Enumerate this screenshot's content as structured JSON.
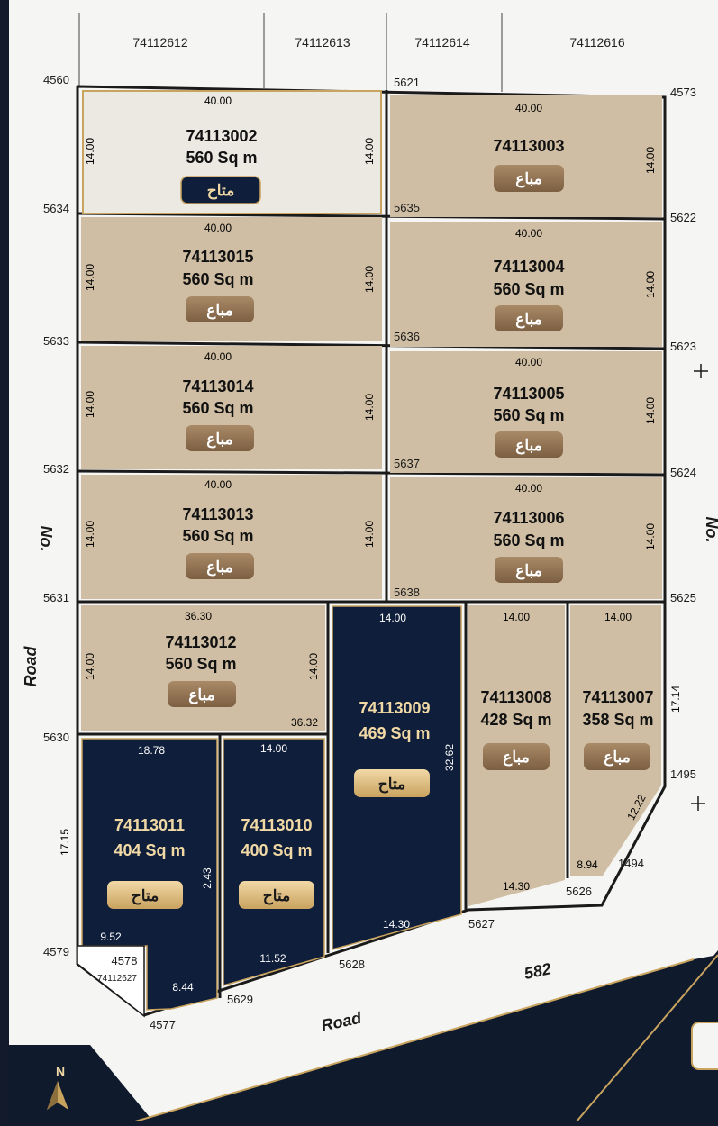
{
  "top_parcels": [
    "74112612",
    "74112613",
    "74112614",
    "74112616"
  ],
  "nodes": {
    "n4560": "4560",
    "n5621": "5621",
    "n4573": "4573",
    "n5634": "5634",
    "n5635": "5635",
    "n5622": "5622",
    "n5633": "5633",
    "n5636": "5636",
    "n5623": "5623",
    "n5632": "5632",
    "n5637": "5637",
    "n5624": "5624",
    "n5631": "5631",
    "n5638": "5638",
    "n5625": "5625",
    "n5630": "5630",
    "n1495": "1495",
    "n1494": "1494",
    "n5626": "5626",
    "n5627": "5627",
    "n5628": "5628",
    "n5629": "5629",
    "n4577": "4577",
    "n4578": "4578",
    "n4579": "4579"
  },
  "small_parcel": "74112627",
  "roads": {
    "left_no": "No.",
    "left_road": "Road",
    "right_no": "No.",
    "bottom_road": "Road",
    "bottom_582": "582"
  },
  "compass": "N",
  "status": {
    "available": "متاح",
    "sold": "مباع"
  },
  "colors": {
    "sold_fill": "#cfbea3",
    "available_fill": "#0f1e3a",
    "gold": "#c9a45f",
    "light_fill": "#ece9e2"
  },
  "plots": [
    {
      "id": "74113002",
      "area": "560 Sq m",
      "status": "متاح",
      "d_top": "40.00",
      "d_left": "14.00",
      "d_right": "14.00"
    },
    {
      "id": "74113003",
      "area": "",
      "status": "مباع",
      "d_top": "40.00",
      "d_right": "14.00"
    },
    {
      "id": "74113015",
      "area": "560 Sq m",
      "status": "مباع",
      "d_top": "40.00",
      "d_left": "14.00",
      "d_right": "14.00"
    },
    {
      "id": "74113004",
      "area": "560 Sq m",
      "status": "مباع",
      "d_top": "40.00",
      "d_right": "14.00"
    },
    {
      "id": "74113014",
      "area": "560 Sq m",
      "status": "مباع",
      "d_top": "40.00",
      "d_left": "14.00",
      "d_right": "14.00"
    },
    {
      "id": "74113005",
      "area": "560 Sq m",
      "status": "مباع",
      "d_top": "40.00",
      "d_right": "14.00"
    },
    {
      "id": "74113013",
      "area": "560 Sq m",
      "status": "مباع",
      "d_top": "40.00",
      "d_left": "14.00",
      "d_right": "14.00"
    },
    {
      "id": "74113006",
      "area": "560 Sq m",
      "status": "مباع",
      "d_top": "40.00",
      "d_right": "14.00"
    },
    {
      "id": "74113012",
      "area": "560 Sq m",
      "status": "مباع",
      "d_top": "36.30",
      "d_left": "14.00",
      "d_right": "14.00",
      "d_bottom": "36.32"
    },
    {
      "id": "74113009",
      "area": "469 Sq m",
      "status": "متاح",
      "d_top": "14.00",
      "d_right": "32.62",
      "d_bottom": "14.30"
    },
    {
      "id": "74113008",
      "area": "428 Sq m",
      "status": "مباع",
      "d_top": "14.00",
      "d_bottom": "14.30"
    },
    {
      "id": "74113007",
      "area": "358 Sq m",
      "status": "مباع",
      "d_top": "14.00",
      "d_right": "17.14",
      "d_diag": "12.22",
      "d_bottom": "8.94"
    },
    {
      "id": "74113011",
      "area": "404 Sq m",
      "status": "متاح",
      "d_top": "18.78",
      "d_left": "17.15",
      "d_right": "2.43",
      "d_bottom_a": "9.52",
      "d_bottom_b": "8.44"
    },
    {
      "id": "74113010",
      "area": "400 Sq m",
      "status": "متاح",
      "d_top": "14.00",
      "d_bottom": "11.52"
    }
  ]
}
